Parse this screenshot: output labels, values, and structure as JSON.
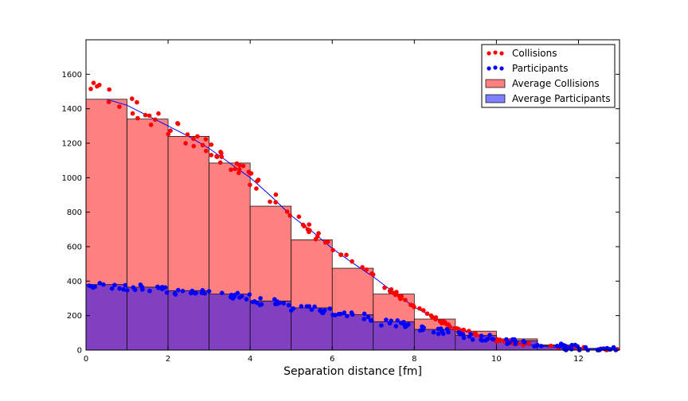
{
  "chart_data": {
    "type": "bar",
    "title": "",
    "xlabel": "Separation distance [fm]",
    "ylabel": "",
    "xlim": [
      0,
      13
    ],
    "ylim": [
      0,
      1800
    ],
    "xticks": [
      0,
      2,
      4,
      6,
      8,
      10,
      12
    ],
    "yticks": [
      0,
      200,
      400,
      600,
      800,
      1000,
      1200,
      1400,
      1600
    ],
    "grid": false,
    "legend_position": "top-right",
    "colors": {
      "collisions": "#ff0000",
      "participants": "#0000ff",
      "avg_collisions_fill": "#ff8080",
      "avg_participants_fill": "#8080ff",
      "overlap_fill": "#8040c0"
    },
    "series": [
      {
        "name": "Collisions",
        "type": "scatter"
      },
      {
        "name": "Participants",
        "type": "scatter"
      },
      {
        "name": "Average Collisions",
        "type": "bar"
      },
      {
        "name": "Average Participants",
        "type": "bar"
      }
    ],
    "bins": {
      "edges": [
        0,
        1,
        2,
        3,
        4,
        5,
        6,
        7,
        8,
        9,
        10,
        11,
        12,
        13
      ],
      "average_collisions": [
        1455,
        1340,
        1240,
        1085,
        835,
        640,
        475,
        325,
        180,
        110,
        65,
        30,
        10
      ],
      "average_participants": [
        380,
        365,
        345,
        325,
        285,
        245,
        205,
        165,
        120,
        85,
        55,
        25,
        10
      ]
    },
    "participants_line": {
      "x": [
        0.5,
        1,
        1.5,
        2,
        2.5,
        3,
        3.5,
        4,
        4.5,
        5,
        5.5,
        6,
        6.5,
        7,
        7.5,
        8,
        8.5,
        9,
        9.5,
        10,
        10.5,
        11,
        11.5,
        12,
        12.5,
        13
      ],
      "y": [
        1455,
        1420,
        1360,
        1300,
        1240,
        1170,
        1085,
        1000,
        895,
        780,
        690,
        590,
        505,
        425,
        335,
        250,
        185,
        125,
        90,
        60,
        40,
        25,
        15,
        10,
        6,
        5
      ]
    }
  }
}
